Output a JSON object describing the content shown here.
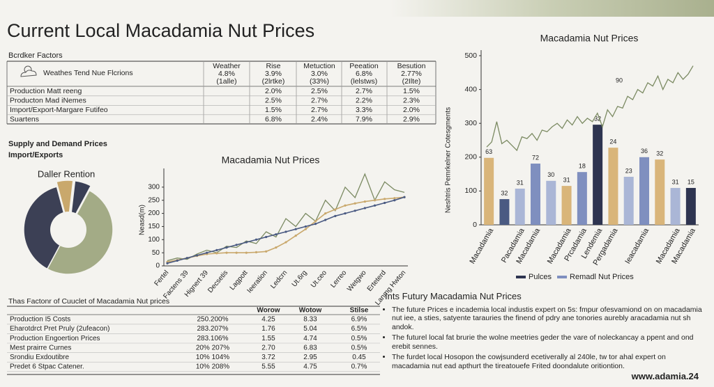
{
  "title": "Current Local Macadamia Nut Prices",
  "factors_table": {
    "heading": "Bcrdker Factors",
    "corner": "Weathes Tend Nue Flcrions",
    "columns": [
      [
        "Weather",
        "4.8%",
        "(1alle)"
      ],
      [
        "Rise",
        "3.9%",
        "(2lrtke)"
      ],
      [
        "Metuction",
        "3.0%",
        "(33%)"
      ],
      [
        "Peeation",
        "6.8%",
        "(lelstws)"
      ],
      [
        "Besution",
        "2.77%",
        "(2Ilte)"
      ]
    ],
    "rows": [
      [
        "Production Matt reeng",
        "2.0%",
        "2.5%",
        "2.7%",
        "1.5%"
      ],
      [
        "Producton Mad iNemes",
        "2.5%",
        "2.7%",
        "2.2%",
        "2.3%"
      ],
      [
        "Import/Export-Margare Futifeo",
        "1.5%",
        "2.7%",
        "3.3%",
        "2.0%"
      ],
      [
        "Suartens",
        "6.8%",
        "2.4%",
        "7.9%",
        "2.9%"
      ]
    ]
  },
  "supply": {
    "heading": "Supply and Demand Prices",
    "subheading": "Import/Exports"
  },
  "chart_data": [
    {
      "type": "pie",
      "title": "Daller Rention",
      "values": [
        6,
        6,
        50,
        38
      ],
      "colors": [
        "#c9a86c",
        "#3a3f55",
        "#a3ab86",
        "#3c4055"
      ]
    },
    {
      "type": "line",
      "title": "Macadamia Nut Prices",
      "ylabel": "Neasd(m)",
      "categories": [
        "Fertel",
        null,
        "Factens 39",
        null,
        "Hignert 39",
        null,
        "Decsetis",
        null,
        "Lagpott",
        null,
        "Ieeration",
        null,
        "Ledcrn",
        null,
        "Ut.6rg",
        null,
        "Ut.ceo",
        null,
        "Lerreo",
        null,
        "Wetgwo",
        null,
        "Erteterd",
        null,
        "Lanmg Hwton"
      ],
      "ylim": [
        0,
        350
      ],
      "yticks": [
        0,
        50,
        100,
        150,
        200,
        250,
        300
      ],
      "series": [
        {
          "color": "#7b8a62",
          "values": [
            20,
            30,
            25,
            45,
            60,
            50,
            75,
            70,
            95,
            85,
            130,
            110,
            180,
            150,
            200,
            170,
            250,
            210,
            300,
            260,
            350,
            250,
            320,
            290,
            280
          ]
        },
        {
          "color": "#c9a86c",
          "values": [
            15,
            22,
            30,
            38,
            45,
            48,
            50,
            50,
            50,
            52,
            55,
            70,
            90,
            115,
            140,
            170,
            200,
            215,
            230,
            238,
            245,
            250,
            255,
            258,
            262
          ]
        },
        {
          "color": "#4a5a82",
          "values": [
            10,
            20,
            30,
            40,
            50,
            60,
            70,
            80,
            90,
            100,
            110,
            120,
            130,
            140,
            150,
            160,
            175,
            190,
            200,
            210,
            220,
            230,
            240,
            250,
            262
          ]
        }
      ]
    },
    {
      "type": "bar",
      "title": "Macadamia Nut Prices",
      "ylabel": "Neshtris Pemrkelner Cotesgments",
      "categories": [
        "Macadamia",
        null,
        "Pacadamia",
        "Macadamia",
        null,
        "Macadamia",
        "Prcadamia",
        "Lendemia",
        "Pergadamia",
        null,
        "Ieacadamia",
        null,
        "Macadamia",
        "Macadamia"
      ],
      "values": [
        198,
        76,
        107,
        181,
        130,
        115,
        156,
        296,
        228,
        142,
        200,
        193,
        109,
        109
      ],
      "colors": [
        "#d9b57a",
        "#4a5a82",
        "#aab6d6",
        "#7f8fbf",
        "#aab6d6",
        "#d9b57a",
        "#7f8fbf",
        "#2e3450",
        "#d9b57a",
        "#aab6d6",
        "#7f8fbf",
        "#d9b57a",
        "#aab6d6",
        "#2e3450"
      ],
      "bar_notes": [
        "63",
        "32",
        "31",
        "72",
        "30",
        "31",
        "18",
        "32",
        "24",
        "23",
        "36",
        "32",
        "31",
        "15"
      ],
      "ylim": [
        0,
        500
      ],
      "yticks": [
        0,
        100,
        200,
        300,
        400,
        500
      ],
      "line": {
        "color": "#7b8a62",
        "note": "90",
        "xlim": [
          0,
          41
        ],
        "x": [
          0,
          1,
          2,
          3,
          4,
          5,
          6,
          7,
          8,
          9,
          10,
          11,
          12,
          13,
          14,
          15,
          16,
          17,
          18,
          19,
          20,
          21,
          22,
          23,
          24,
          25,
          26,
          27,
          28,
          29,
          30,
          31,
          32,
          33,
          34,
          35,
          36,
          37,
          38,
          39,
          40,
          41
        ],
        "values": [
          230,
          245,
          305,
          240,
          250,
          235,
          220,
          260,
          255,
          270,
          250,
          280,
          275,
          290,
          300,
          285,
          310,
          295,
          320,
          300,
          315,
          305,
          330,
          290,
          340,
          320,
          350,
          345,
          380,
          370,
          400,
          390,
          420,
          410,
          440,
          400,
          430,
          420,
          450,
          430,
          445,
          470
        ]
      },
      "legend": [
        {
          "name": "Pulces",
          "color": "#2e3450"
        },
        {
          "name": "Remadl Nut Prices",
          "color": "#7f8fbf"
        }
      ]
    }
  ],
  "cost_table": {
    "heading": "Thas Factonr of Cuuclet of Macadamia Nut prices",
    "columns": [
      "Worow",
      "Wotow",
      "Stilse"
    ],
    "rows": [
      [
        "Production I5 Costs",
        "250.200%",
        "4.25",
        "8.33",
        "6.9%"
      ],
      [
        "Eharotdrct Pret Pruly (2ufeacon)",
        "283.207%",
        "1.76",
        "5.04",
        "6.5%"
      ],
      [
        "Production Engoertion Prices",
        "283.106%",
        "1.55",
        "4.74",
        "0.5%"
      ],
      [
        "Mest prairre Curnes",
        "20% 207%",
        "2.70",
        "6.83",
        "0.5%"
      ],
      [
        "Srondiu Exdoutibre",
        "10% 104%",
        "3.72",
        "2.95",
        "0.45"
      ],
      [
        "Predet 6 Stpac Catener.",
        "10% 208%",
        "5.55",
        "4.75",
        "0.7%"
      ]
    ]
  },
  "outlook": {
    "heading": "Ints Futury Macadamia Nut Prices",
    "bullets": [
      "The future Prices e incademia local industis expert on 5s: fmpur ofesvamiond on on macadamia nut iee, a sties, satyente tarauries the finend of pdry ane tonories aurebly aracadamia nut sh andok.",
      "The futurel local fat brurie the wolne meetries geder the vare of noleckancay a ppent and ond erebit sennes.",
      "The furdet local Hosopon the cowjsunderd ecetiverally al 240le, tw tor ahal expert on macadamia nut ead apthurt the tireatouefe Frited doondalute oritiontion."
    ]
  },
  "footer": "www.adamia.24"
}
